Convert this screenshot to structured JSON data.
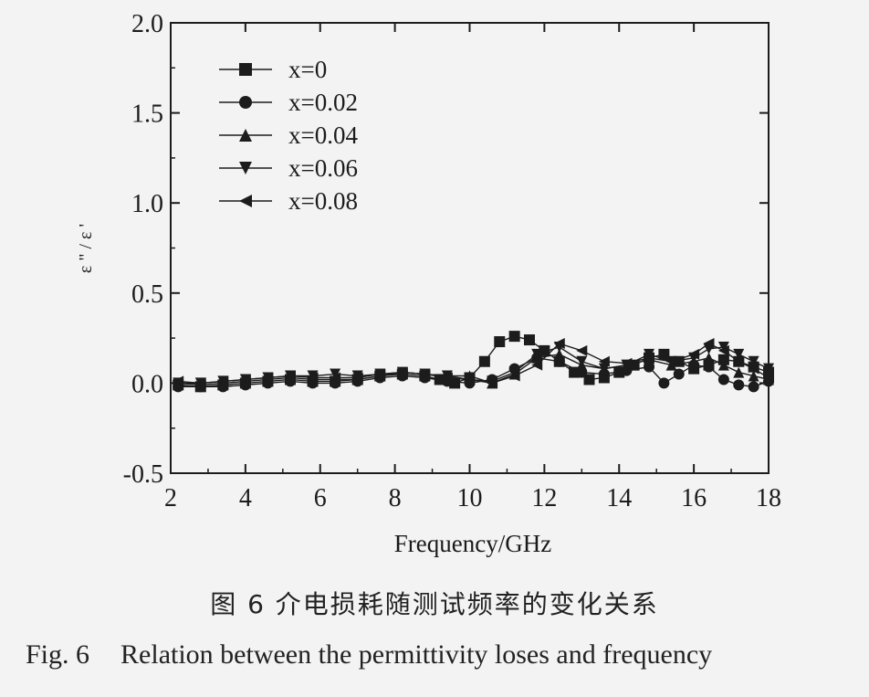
{
  "chart_data": {
    "type": "scatter",
    "xlabel": "Frequency/GHz",
    "ylabel": "ε \" / ε '",
    "xlim": [
      2,
      18
    ],
    "ylim": [
      -0.5,
      2.0
    ],
    "xticks": [
      2,
      4,
      6,
      8,
      10,
      12,
      14,
      16,
      18
    ],
    "yticks": [
      -0.5,
      0.0,
      0.5,
      1.0,
      1.5,
      2.0
    ],
    "ytick_labels": [
      "-0.5",
      "0.0",
      "0.5",
      "1.0",
      "1.5",
      "2.0"
    ],
    "legend_position": "top-left",
    "grid": false,
    "series": [
      {
        "name": "x=0",
        "marker": "square",
        "x": [
          2.2,
          2.8,
          3.4,
          4.0,
          4.6,
          5.2,
          5.8,
          6.4,
          7.0,
          7.6,
          8.2,
          8.8,
          9.2,
          9.6,
          10.0,
          10.4,
          10.8,
          11.2,
          11.6,
          12.0,
          12.4,
          12.8,
          13.2,
          13.6,
          14.0,
          14.4,
          14.8,
          15.2,
          15.6,
          16.0,
          16.4,
          16.8,
          17.2,
          17.6,
          18.0
        ],
        "y": [
          -0.01,
          -0.02,
          -0.01,
          0.0,
          0.01,
          0.02,
          0.01,
          0.01,
          0.02,
          0.04,
          0.05,
          0.04,
          0.02,
          0.0,
          0.03,
          0.12,
          0.23,
          0.26,
          0.24,
          0.18,
          0.12,
          0.06,
          0.02,
          0.03,
          0.06,
          0.1,
          0.14,
          0.16,
          0.12,
          0.08,
          0.1,
          0.13,
          0.12,
          0.09,
          0.06
        ]
      },
      {
        "name": "x=0.02",
        "marker": "circle",
        "x": [
          2.2,
          2.8,
          3.4,
          4.0,
          4.6,
          5.2,
          5.8,
          6.4,
          7.0,
          7.6,
          8.2,
          8.8,
          9.4,
          10.0,
          10.6,
          11.2,
          11.8,
          12.4,
          13.0,
          13.6,
          14.2,
          14.8,
          15.2,
          15.6,
          16.0,
          16.4,
          16.8,
          17.2,
          17.6,
          18.0
        ],
        "y": [
          -0.02,
          -0.02,
          -0.02,
          -0.01,
          0.0,
          0.01,
          0.0,
          0.0,
          0.01,
          0.03,
          0.04,
          0.03,
          0.01,
          0.0,
          0.02,
          0.08,
          0.14,
          0.12,
          0.06,
          0.05,
          0.07,
          0.09,
          0.0,
          0.05,
          0.1,
          0.09,
          0.02,
          -0.01,
          -0.02,
          0.01
        ]
      },
      {
        "name": "x=0.04",
        "marker": "triangle-up",
        "x": [
          2.2,
          2.8,
          3.4,
          4.0,
          4.6,
          5.2,
          5.8,
          6.4,
          7.0,
          7.6,
          8.2,
          8.8,
          9.4,
          10.0,
          10.6,
          11.2,
          11.8,
          12.4,
          13.0,
          13.6,
          14.2,
          14.8,
          15.4,
          16.0,
          16.4,
          16.8,
          17.2,
          17.6,
          18.0
        ],
        "y": [
          0.0,
          -0.01,
          0.0,
          0.01,
          0.02,
          0.03,
          0.02,
          0.02,
          0.02,
          0.04,
          0.06,
          0.05,
          0.04,
          0.04,
          0.0,
          0.05,
          0.14,
          0.16,
          0.1,
          0.08,
          0.1,
          0.13,
          0.1,
          0.12,
          0.14,
          0.1,
          0.06,
          0.04,
          0.02
        ]
      },
      {
        "name": "x=0.06",
        "marker": "triangle-down",
        "x": [
          2.2,
          2.8,
          3.4,
          4.0,
          4.6,
          5.2,
          5.8,
          6.4,
          7.0,
          7.6,
          8.2,
          8.8,
          9.4,
          10.0,
          10.6,
          11.2,
          11.8,
          12.4,
          13.0,
          13.6,
          14.2,
          14.8,
          15.4,
          16.0,
          16.4,
          16.8,
          17.2,
          17.6,
          18.0
        ],
        "y": [
          0.0,
          0.0,
          0.01,
          0.02,
          0.03,
          0.04,
          0.04,
          0.05,
          0.04,
          0.05,
          0.06,
          0.05,
          0.04,
          0.02,
          0.01,
          0.06,
          0.16,
          0.2,
          0.12,
          0.08,
          0.1,
          0.16,
          0.12,
          0.14,
          0.19,
          0.2,
          0.16,
          0.12,
          0.08
        ]
      },
      {
        "name": "x=0.08",
        "marker": "triangle-left",
        "x": [
          2.2,
          2.8,
          3.4,
          4.0,
          4.6,
          5.2,
          5.8,
          6.4,
          7.0,
          7.6,
          8.2,
          8.8,
          9.4,
          10.0,
          10.6,
          11.2,
          11.8,
          12.4,
          13.0,
          13.6,
          14.2,
          14.8,
          15.4,
          16.0,
          16.4,
          16.8,
          17.2,
          17.6,
          18.0
        ],
        "y": [
          0.01,
          0.0,
          0.01,
          0.02,
          0.03,
          0.04,
          0.03,
          0.03,
          0.03,
          0.05,
          0.06,
          0.05,
          0.03,
          0.02,
          0.0,
          0.04,
          0.1,
          0.22,
          0.18,
          0.12,
          0.11,
          0.14,
          0.12,
          0.16,
          0.22,
          0.18,
          0.12,
          0.08,
          0.03
        ]
      }
    ]
  },
  "caption": {
    "cn": "图 6    介电损耗随测试频率的变化关系",
    "en_num": "Fig. 6",
    "en_text": "Relation between the permittivity loses and frequency"
  }
}
